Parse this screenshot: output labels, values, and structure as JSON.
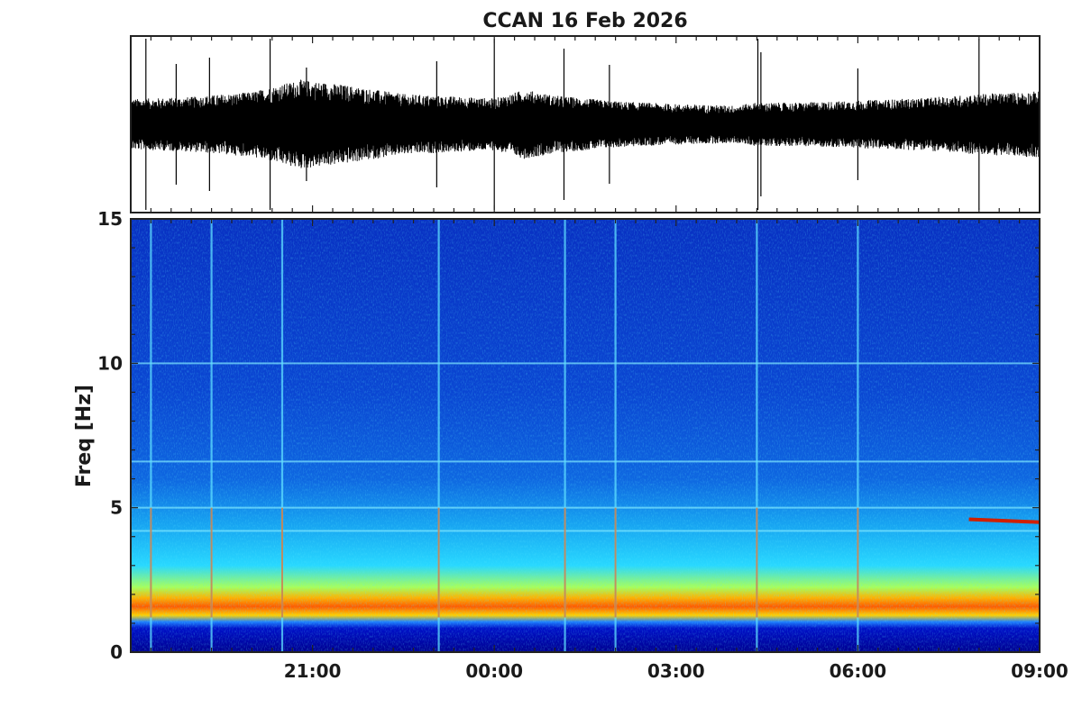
{
  "chart_data": [
    {
      "type": "line",
      "panel": "seismogram",
      "title": "CCAN  16 Feb 2026",
      "xlabel": "",
      "ylabel": "",
      "x_tick_labels": [],
      "y_tick_labels": [],
      "description_of_signal": "continuous broadband noise, amplitude envelope varies; spikes near 19:20, 19:40, 20:30, 23:05, 02:00, 04:20",
      "envelope": {
        "time_hours": [
          18.0,
          19.0,
          20.0,
          20.8,
          21.5,
          22.5,
          23.5,
          0.0,
          0.5,
          1.0,
          2.0,
          3.0,
          4.0,
          4.3,
          5.0,
          6.0,
          7.0,
          8.0,
          9.0
        ],
        "relative_amplitude": [
          0.35,
          0.38,
          0.45,
          0.62,
          0.55,
          0.42,
          0.38,
          0.36,
          0.48,
          0.4,
          0.32,
          0.28,
          0.26,
          0.3,
          0.3,
          0.33,
          0.36,
          0.42,
          0.46
        ]
      },
      "spikes_time_hours": [
        18.25,
        18.75,
        19.3,
        20.3,
        20.9,
        23.05,
        0.0,
        1.15,
        1.9,
        4.35,
        4.4,
        6.0,
        8.0
      ]
    },
    {
      "type": "heatmap",
      "panel": "spectrogram",
      "xlabel": "",
      "ylabel": "Freq [Hz]",
      "x_range": [
        "18:00",
        "09:00"
      ],
      "x_ticks": [
        "21:00",
        "00:00",
        "03:00",
        "06:00",
        "09:00"
      ],
      "ylim": [
        0,
        15
      ],
      "y_ticks": [
        "0",
        "5",
        "10",
        "15"
      ],
      "colormap": "jet",
      "colors": {
        "low": "#00008f",
        "mid": "#00ffff",
        "high": "#ff0000"
      },
      "dominant_band_hz": [
        1.0,
        2.2
      ],
      "persistent_lines_hz": [
        10.0,
        6.6,
        5.0,
        4.2
      ],
      "broadband_events_time": [
        "18:20",
        "19:20",
        "20:30",
        "23:05",
        "01:10",
        "02:00",
        "04:20",
        "06:00"
      ],
      "tremor_feature": {
        "time_start": "07:50",
        "time_end": "09:00",
        "freq_hz": 4.6
      }
    }
  ]
}
